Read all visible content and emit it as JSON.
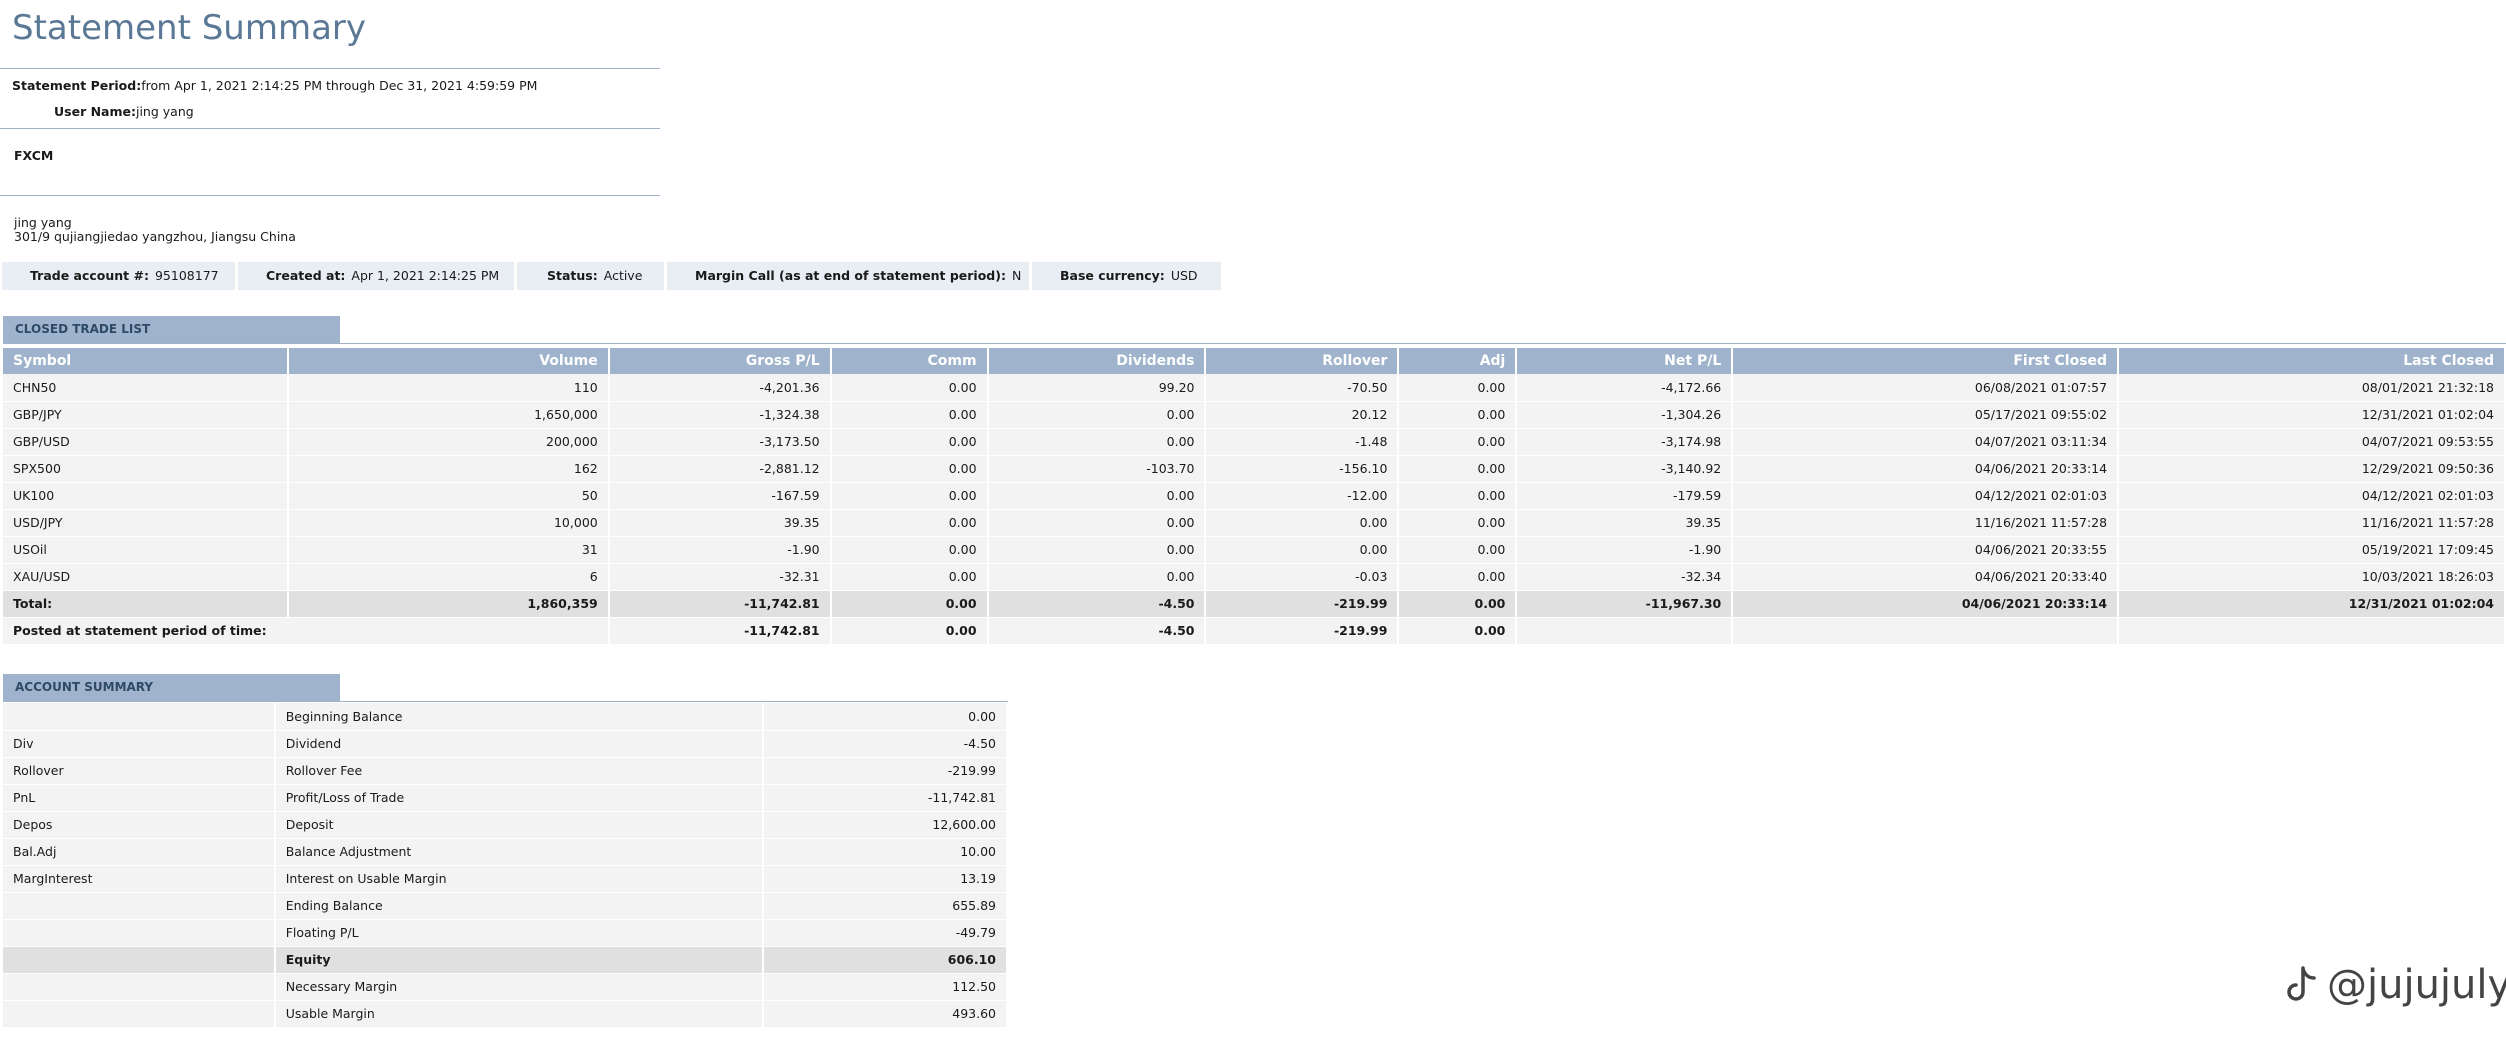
{
  "title": "Statement Summary",
  "statement": {
    "period_label": "Statement Period:",
    "period_value": "from Apr 1, 2021 2:14:25 PM through Dec 31, 2021 4:59:59 PM",
    "user_label": "User Name:",
    "user_value": "jing yang"
  },
  "broker": "FXCM",
  "address": {
    "name": "jing yang",
    "line": "301/9 qujiangjiedao yangzhou, Jiangsu China"
  },
  "account_info": [
    {
      "label": "Trade account #:",
      "value": "95108177"
    },
    {
      "label": "Created at:",
      "value": "Apr 1, 2021 2:14:25 PM"
    },
    {
      "label": "Status:",
      "value": "Active"
    },
    {
      "label": "Margin Call (as at end of statement period):",
      "value": "N"
    },
    {
      "label": "Base currency:",
      "value": "USD"
    }
  ],
  "closed_trades": {
    "section_title": "CLOSED TRADE LIST",
    "columns": [
      "Symbol",
      "Volume",
      "Gross P/L",
      "Comm",
      "Dividends",
      "Rollover",
      "Adj",
      "Net P/L",
      "First Closed",
      "Last Closed"
    ],
    "rows": [
      [
        "CHN50",
        "110",
        "-4,201.36",
        "0.00",
        "99.20",
        "-70.50",
        "0.00",
        "-4,172.66",
        "06/08/2021 01:07:57",
        "08/01/2021 21:32:18"
      ],
      [
        "GBP/JPY",
        "1,650,000",
        "-1,324.38",
        "0.00",
        "0.00",
        "20.12",
        "0.00",
        "-1,304.26",
        "05/17/2021 09:55:02",
        "12/31/2021 01:02:04"
      ],
      [
        "GBP/USD",
        "200,000",
        "-3,173.50",
        "0.00",
        "0.00",
        "-1.48",
        "0.00",
        "-3,174.98",
        "04/07/2021 03:11:34",
        "04/07/2021 09:53:55"
      ],
      [
        "SPX500",
        "162",
        "-2,881.12",
        "0.00",
        "-103.70",
        "-156.10",
        "0.00",
        "-3,140.92",
        "04/06/2021 20:33:14",
        "12/29/2021 09:50:36"
      ],
      [
        "UK100",
        "50",
        "-167.59",
        "0.00",
        "0.00",
        "-12.00",
        "0.00",
        "-179.59",
        "04/12/2021 02:01:03",
        "04/12/2021 02:01:03"
      ],
      [
        "USD/JPY",
        "10,000",
        "39.35",
        "0.00",
        "0.00",
        "0.00",
        "0.00",
        "39.35",
        "11/16/2021 11:57:28",
        "11/16/2021 11:57:28"
      ],
      [
        "USOil",
        "31",
        "-1.90",
        "0.00",
        "0.00",
        "0.00",
        "0.00",
        "-1.90",
        "04/06/2021 20:33:55",
        "05/19/2021 17:09:45"
      ],
      [
        "XAU/USD",
        "6",
        "-32.31",
        "0.00",
        "0.00",
        "-0.03",
        "0.00",
        "-32.34",
        "04/06/2021 20:33:40",
        "10/03/2021 18:26:03"
      ]
    ],
    "total": [
      "Total:",
      "1,860,359",
      "-11,742.81",
      "0.00",
      "-4.50",
      "-219.99",
      "0.00",
      "-11,967.30",
      "04/06/2021 20:33:14",
      "12/31/2021 01:02:04"
    ],
    "posted": [
      "Posted at statement period of time:",
      "",
      "-11,742.81",
      "0.00",
      "-4.50",
      "-219.99",
      "0.00",
      "",
      "",
      ""
    ]
  },
  "account_summary": {
    "section_title": "ACCOUNT SUMMARY",
    "rows": [
      {
        "code": "",
        "label": "Beginning Balance",
        "value": "0.00"
      },
      {
        "code": "Div",
        "label": "Dividend",
        "value": "-4.50"
      },
      {
        "code": "Rollover",
        "label": "Rollover Fee",
        "value": "-219.99"
      },
      {
        "code": "PnL",
        "label": "Profit/Loss of Trade",
        "value": "-11,742.81"
      },
      {
        "code": "Depos",
        "label": "Deposit",
        "value": "12,600.00"
      },
      {
        "code": "Bal.Adj",
        "label": "Balance Adjustment",
        "value": "10.00"
      },
      {
        "code": "MargInterest",
        "label": "Interest on Usable Margin",
        "value": "13.19"
      },
      {
        "code": "",
        "label": "Ending Balance",
        "value": "655.89"
      },
      {
        "code": "",
        "label": "Floating P/L",
        "value": "-49.79"
      },
      {
        "code": "",
        "label": "Equity",
        "value": "606.10"
      },
      {
        "code": "",
        "label": "Necessary Margin",
        "value": "112.50"
      },
      {
        "code": "",
        "label": "Usable Margin",
        "value": "493.60"
      }
    ]
  },
  "watermark": "@jujujuly"
}
